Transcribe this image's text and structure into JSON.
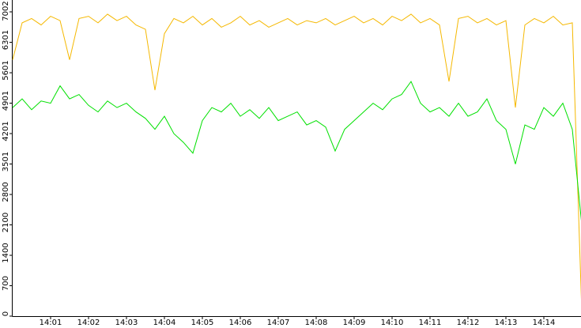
{
  "chart_data": {
    "type": "line",
    "x": [
      840,
      840.25,
      840.5,
      840.75,
      841,
      841.25,
      841.5,
      841.75,
      842,
      842.25,
      842.5,
      842.75,
      843,
      843.25,
      843.5,
      843.75,
      844,
      844.25,
      844.5,
      844.75,
      845,
      845.25,
      845.5,
      845.75,
      846,
      846.25,
      846.5,
      846.75,
      847,
      847.25,
      847.5,
      847.75,
      848,
      848.25,
      848.5,
      848.75,
      849,
      849.25,
      849.5,
      849.75,
      850,
      850.25,
      850.5,
      850.75,
      851,
      851.25,
      851.5,
      851.75,
      852,
      852.25,
      852.5,
      852.75,
      853,
      853.25,
      853.5,
      853.75,
      854,
      854.25,
      854.5,
      854.75,
      855
    ],
    "series": [
      {
        "color": "#f5b800",
        "values": [
          5900,
          6750,
          6850,
          6700,
          6900,
          6800,
          5900,
          6850,
          6900,
          6750,
          6950,
          6800,
          6900,
          6700,
          6600,
          5200,
          6500,
          6850,
          6750,
          6900,
          6700,
          6850,
          6650,
          6750,
          6900,
          6700,
          6800,
          6650,
          6750,
          6850,
          6700,
          6800,
          6750,
          6850,
          6700,
          6800,
          6900,
          6750,
          6850,
          6700,
          6900,
          6800,
          6950,
          6750,
          6850,
          6700,
          5400,
          6850,
          6900,
          6750,
          6850,
          6700,
          6800,
          4800,
          6700,
          6850,
          6750,
          6900,
          6700,
          6750,
          100
        ]
      },
      {
        "color": "#00e000",
        "values": [
          4800,
          5000,
          4750,
          4950,
          4900,
          5300,
          5000,
          5100,
          4850,
          4700,
          4950,
          4800,
          4900,
          4700,
          4550,
          4300,
          4600,
          4200,
          4000,
          3750,
          4500,
          4800,
          4700,
          4900,
          4600,
          4750,
          4550,
          4800,
          4500,
          4600,
          4700,
          4400,
          4500,
          4350,
          3800,
          4300,
          4500,
          4700,
          4900,
          4750,
          5000,
          5100,
          5400,
          4900,
          4700,
          4800,
          4600,
          4900,
          4600,
          4700,
          5000,
          4500,
          4300,
          3500,
          4400,
          4300,
          4800,
          4600,
          4900,
          4300,
          2100
        ]
      }
    ],
    "xlim": [
      840,
      855
    ],
    "xticks": [
      {
        "value": 841,
        "label": "14:01"
      },
      {
        "value": 842,
        "label": "14:02"
      },
      {
        "value": 843,
        "label": "14:03"
      },
      {
        "value": 844,
        "label": "14:04"
      },
      {
        "value": 845,
        "label": "14:05"
      },
      {
        "value": 846,
        "label": "14:06"
      },
      {
        "value": 847,
        "label": "14:07"
      },
      {
        "value": 848,
        "label": "14:08"
      },
      {
        "value": 849,
        "label": "14:09"
      },
      {
        "value": 850,
        "label": "14:10"
      },
      {
        "value": 851,
        "label": "14:11"
      },
      {
        "value": 852,
        "label": "14:12"
      },
      {
        "value": 853,
        "label": "14:13"
      },
      {
        "value": 854,
        "label": "14:14"
      }
    ],
    "ylim": [
      0,
      7275
    ],
    "yticks": [
      0,
      700,
      1400,
      2100,
      2800,
      3501,
      4201,
      4901,
      5601,
      6301,
      7002
    ]
  }
}
